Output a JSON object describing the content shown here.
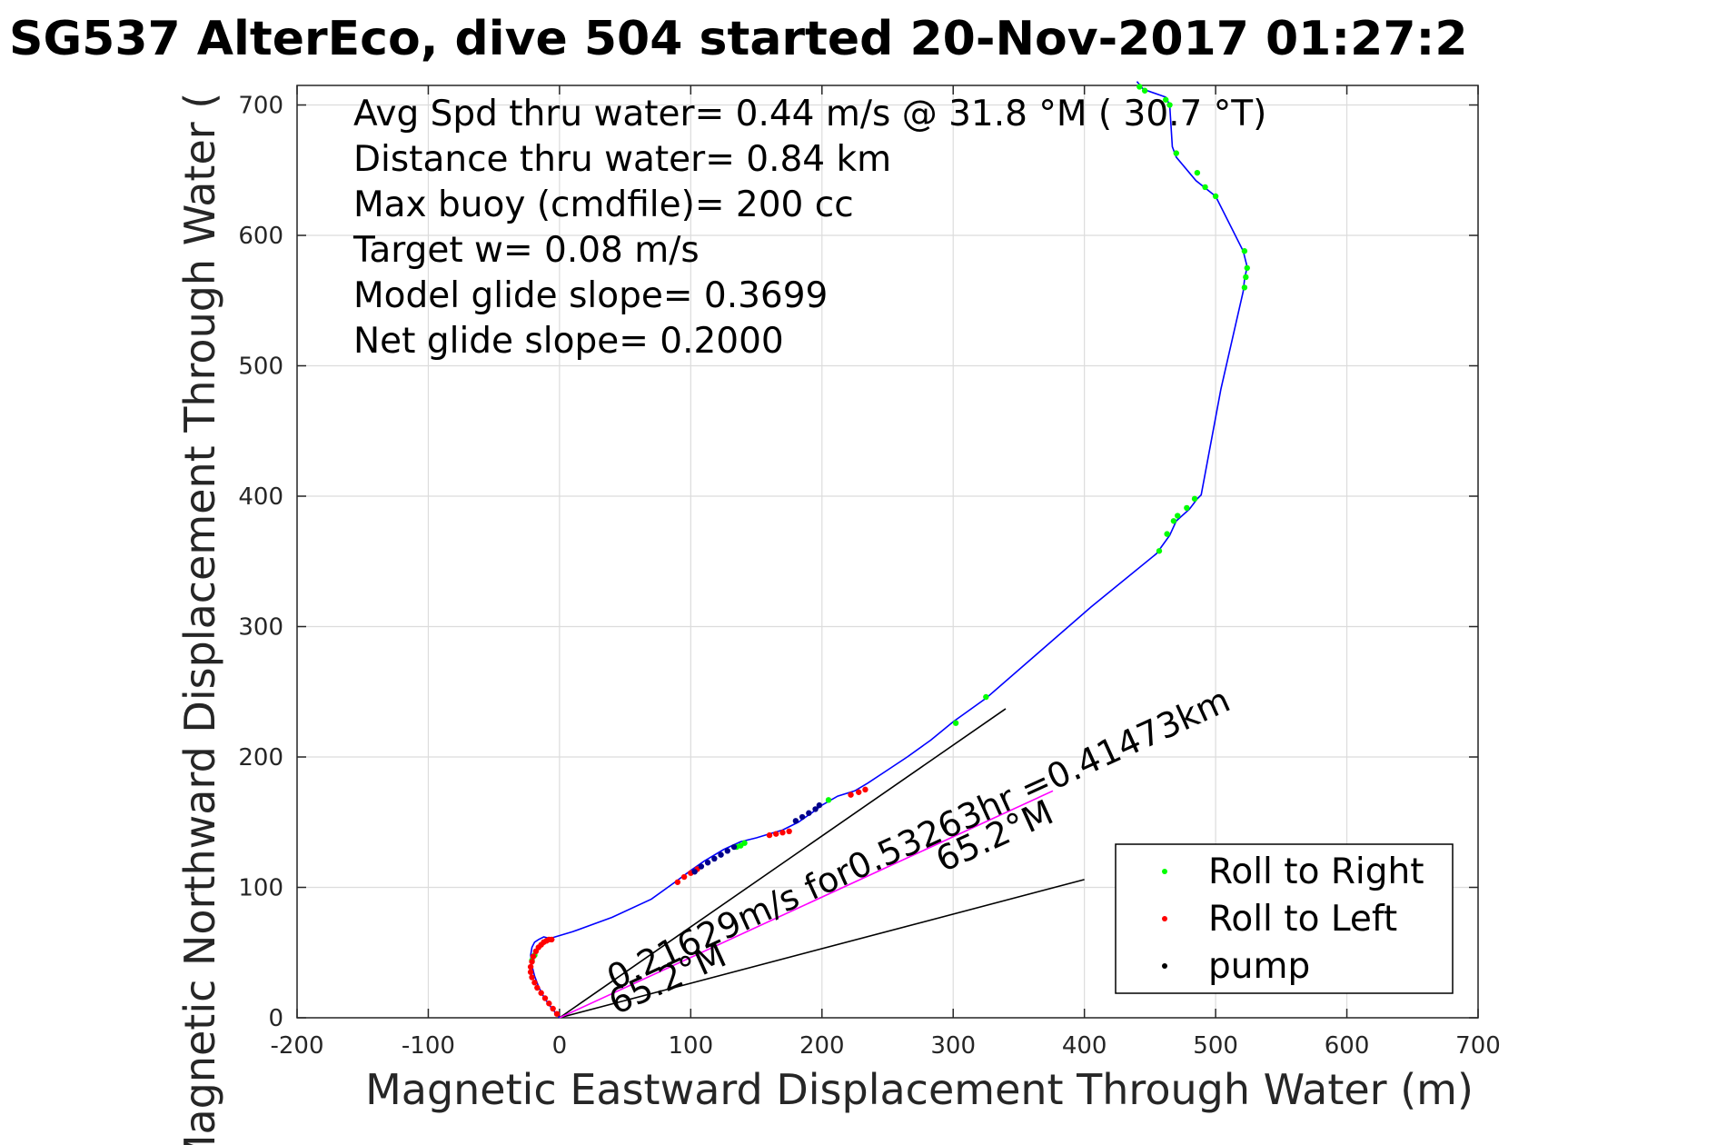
{
  "chart_data": {
    "type": "scatter",
    "title": "SG537 AlterEco, dive 504 started 20-Nov-2017 01:27:2",
    "xlabel": "Magnetic Eastward Displacement Through Water (m)",
    "ylabel": "Magnetic Northward Displacement Through Water (",
    "xlim": [
      -200,
      700
    ],
    "ylim": [
      0,
      715
    ],
    "xticks": [
      -200,
      -100,
      0,
      100,
      200,
      300,
      400,
      500,
      600,
      700
    ],
    "yticks": [
      0,
      100,
      200,
      300,
      400,
      500,
      600,
      700
    ],
    "grid": true,
    "legend_position": "bottom-right",
    "annotations": [
      "Avg Spd thru water=  0.44 m/s @  31.8 °M ( 30.7 °T)",
      "Distance thru water=  0.84 km",
      "Max buoy (cmdfile)= 200 cc",
      "Target w= 0.08 m/s",
      "Model glide slope= 0.3699",
      "Net glide slope= 0.2000"
    ],
    "current_label": "0.21629m/s for0.53263hr =0.41473km",
    "heading_labels": [
      "65.2°M",
      "65.2°M"
    ],
    "track": {
      "name": "track",
      "color": "#0000ff",
      "x": [
        0,
        -4,
        -8,
        -12,
        -16,
        -19,
        -21,
        -22,
        -21,
        -19,
        -16,
        -12,
        -8,
        -4,
        -10,
        10,
        40,
        70,
        88,
        100,
        110,
        125,
        138,
        150,
        160,
        170,
        182,
        192,
        200,
        212,
        225,
        235,
        250,
        265,
        283,
        300,
        325,
        365,
        405,
        455,
        465,
        470,
        480,
        486,
        489,
        504,
        521,
        522,
        524,
        521,
        500,
        485,
        470,
        467,
        465,
        462,
        445,
        440
      ],
      "y": [
        0,
        5,
        10,
        16,
        24,
        32,
        40,
        48,
        54,
        58,
        60,
        62,
        61,
        60,
        60,
        66,
        77,
        91,
        104,
        113,
        120,
        129,
        135,
        138,
        141,
        144,
        150,
        157,
        163,
        170,
        174,
        180,
        190,
        200,
        213,
        227,
        245,
        280,
        315,
        356,
        370,
        381,
        390,
        398,
        401,
        482,
        557,
        566,
        576,
        588,
        630,
        642,
        660,
        668,
        700,
        706,
        712,
        718
      ]
    },
    "series": [
      {
        "name": "Roll to Right",
        "color": "#00ff00",
        "x": [
          -21,
          -19,
          135,
          138,
          141,
          205,
          302,
          325,
          457,
          463,
          468,
          478,
          484,
          471,
          522,
          523,
          524,
          522,
          500,
          492,
          486,
          470,
          465,
          462,
          442,
          446
        ],
        "y": [
          44,
          48,
          131,
          132,
          134,
          167,
          226,
          246,
          358,
          371,
          381,
          391,
          398,
          385,
          560,
          568,
          575,
          588,
          630,
          637,
          648,
          663,
          700,
          704,
          714,
          711
        ]
      },
      {
        "name": "Roll to Left",
        "color": "#ff0000",
        "x": [
          -2,
          -5,
          -8,
          -11,
          -14,
          -17,
          -19,
          -21,
          -22,
          -22,
          -21,
          -20,
          -18,
          -16,
          -14,
          -12,
          -10,
          -8,
          -6,
          90,
          95,
          100,
          105,
          160,
          165,
          170,
          175,
          222,
          228,
          233
        ],
        "y": [
          3,
          7,
          11,
          15,
          19,
          23,
          27,
          31,
          35,
          39,
          43,
          47,
          51,
          54,
          56,
          58,
          59,
          60,
          60,
          104,
          108,
          111,
          114,
          140,
          141,
          142,
          143,
          171,
          173,
          175
        ]
      },
      {
        "name": "pump",
        "color": "#00008b",
        "x": [
          103,
          108,
          113,
          118,
          123,
          128,
          133,
          180,
          185,
          190,
          195,
          198
        ],
        "y": [
          112,
          116,
          119,
          122,
          125,
          128,
          131,
          151,
          154,
          157,
          160,
          163
        ]
      }
    ],
    "reference_lines": [
      {
        "x": [
          0,
          340
        ],
        "y": [
          0,
          237
        ],
        "color": "#000000"
      },
      {
        "x": [
          0,
          400
        ],
        "y": [
          0,
          106
        ],
        "color": "#000000"
      },
      {
        "x": [
          0,
          376
        ],
        "y": [
          0,
          174
        ],
        "color": "#ff00ff"
      }
    ]
  }
}
